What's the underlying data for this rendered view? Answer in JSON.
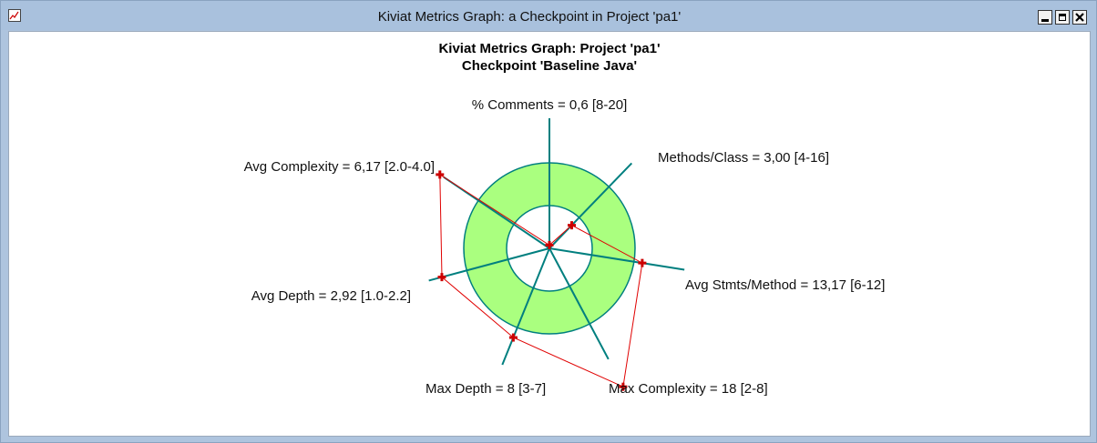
{
  "window": {
    "title": "Kiviat Metrics Graph: a Checkpoint in Project 'pa1'",
    "icon": "chart-app-icon",
    "controls": [
      "minimize-icon",
      "maximize-icon",
      "close-icon"
    ]
  },
  "chart_data": {
    "type": "kiviat",
    "title": "Kiviat Metrics Graph: Project 'pa1'",
    "subtitle": "Checkpoint 'Baseline Java'",
    "colors": {
      "band": "#aaff7f",
      "axis": "#007f7f",
      "polygon": "#e00000",
      "marker": "#cc0000"
    },
    "metrics": [
      {
        "label": "% Comments = 0,6 [8-20]",
        "value": 0.6,
        "min": 8,
        "max": 20
      },
      {
        "label": "Methods/Class = 3,00 [4-16]",
        "value": 3.0,
        "min": 4,
        "max": 16
      },
      {
        "label": "Avg Stmts/Method = 13,17 [6-12]",
        "value": 13.17,
        "min": 6,
        "max": 12
      },
      {
        "label": "Max Complexity = 18 [2-8]",
        "value": 18,
        "min": 2,
        "max": 8
      },
      {
        "label": "Max Depth = 8 [3-7]",
        "value": 8,
        "min": 3,
        "max": 7
      },
      {
        "label": "Avg Depth = 2,92 [1.0-2.2]",
        "value": 2.92,
        "min": 1.0,
        "max": 2.2
      },
      {
        "label": "Avg Complexity = 6,17 [2.0-4.0]",
        "value": 6.17,
        "min": 2.0,
        "max": 4.0
      }
    ]
  }
}
